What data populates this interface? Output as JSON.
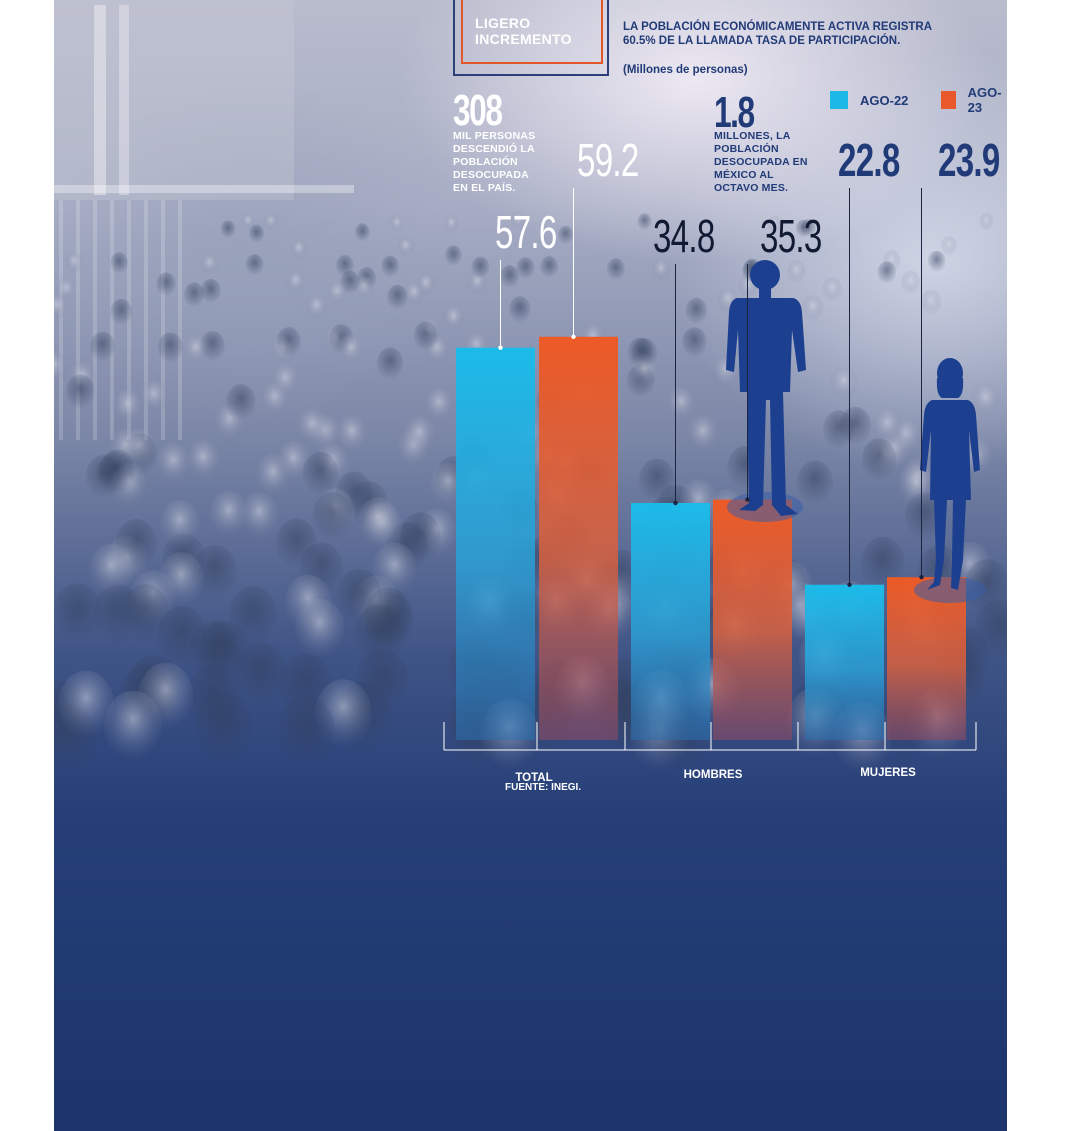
{
  "header": {
    "title_lines": [
      "LIGERO",
      "INCREMENTO"
    ],
    "subtitle_lines": [
      "LA POBLACIÓN ECONÓMICAMENTE ACTIVA REGISTRA",
      "60.5% DE LA LLAMADA TASA DE PARTICIPACIÓN."
    ],
    "units": "(Millones de personas)"
  },
  "stats": [
    {
      "number": "308",
      "highlight": "MIL",
      "text_first": " PERSONAS",
      "text_lines": [
        "DESCENDIÓ LA",
        "POBLACIÓN",
        "DESOCUPADA",
        "EN EL PAÍS."
      ]
    },
    {
      "number": "1.8",
      "highlight": "MILLONES",
      "text_first": ", LA",
      "text_lines": [
        "POBLACIÓN",
        "DESOCUPADA EN",
        "MÉXICO AL",
        "OCTAVO MES."
      ]
    }
  ],
  "source": "FUENTE: INEGI.",
  "colors": {
    "ago22": "#1cb8e6",
    "ago23": "#e8582a",
    "navy": "#213a78"
  },
  "chart_data": {
    "type": "bar",
    "categories": [
      "TOTAL",
      "HOMBRES",
      "MUJERES"
    ],
    "series": [
      {
        "name": "AGO-22",
        "values": [
          57.6,
          34.8,
          22.8
        ],
        "labels": [
          "57.6",
          "34.8",
          "22.8"
        ]
      },
      {
        "name": "AGO-23",
        "values": [
          59.2,
          35.3,
          23.9
        ],
        "labels": [
          "59.2",
          "35.3",
          "23.9"
        ]
      }
    ],
    "legend": "top-right",
    "grid": false
  }
}
